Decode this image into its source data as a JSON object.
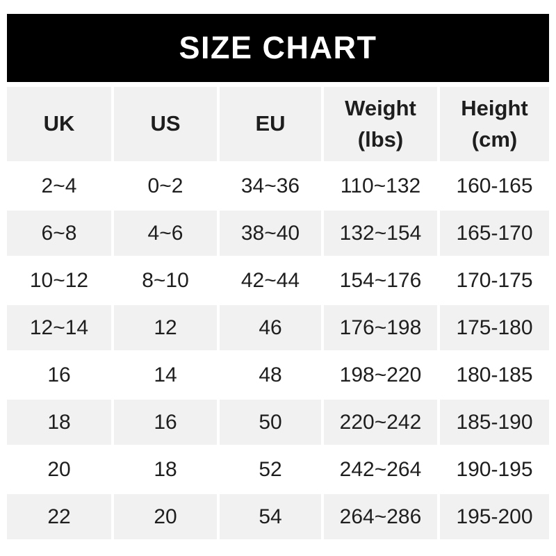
{
  "title": "SIZE CHART",
  "colors": {
    "banner_bg": "#000000",
    "banner_text": "#ffffff",
    "alt_row_bg": "#f1f1f1",
    "row_bg": "#ffffff",
    "text": "#1e1e1e"
  },
  "chart_data": {
    "type": "table",
    "title": "SIZE CHART",
    "columns": [
      "UK",
      "US",
      "EU",
      "Weight (lbs)",
      "Height (cm)"
    ],
    "column_display": [
      "UK",
      "US",
      "EU",
      "Weight\n(lbs)",
      "Height\n(cm)"
    ],
    "rows": [
      [
        "2~4",
        "0~2",
        "34~36",
        "110~132",
        "160-165"
      ],
      [
        "6~8",
        "4~6",
        "38~40",
        "132~154",
        "165-170"
      ],
      [
        "10~12",
        "8~10",
        "42~44",
        "154~176",
        "170-175"
      ],
      [
        "12~14",
        "12",
        "46",
        "176~198",
        "175-180"
      ],
      [
        "16",
        "14",
        "48",
        "198~220",
        "180-185"
      ],
      [
        "18",
        "16",
        "50",
        "220~242",
        "185-190"
      ],
      [
        "20",
        "18",
        "52",
        "242~264",
        "190-195"
      ],
      [
        "22",
        "20",
        "54",
        "264~286",
        "195-200"
      ]
    ]
  }
}
